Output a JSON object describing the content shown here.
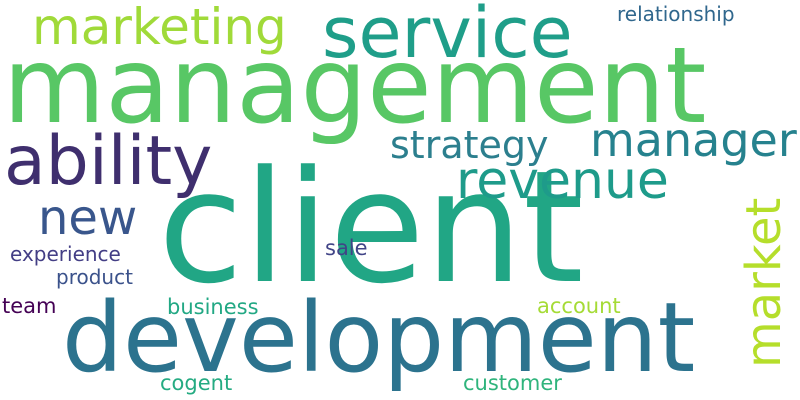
{
  "words": {
    "management": {
      "text": "management",
      "color": "#58c765"
    },
    "client": {
      "text": "client",
      "color": "#21a685"
    },
    "development": {
      "text": "development",
      "color": "#2c738e"
    },
    "service": {
      "text": "service",
      "color": "#1f9e89"
    },
    "ability": {
      "text": "ability",
      "color": "#3f2f6e"
    },
    "marketing": {
      "text": "marketing",
      "color": "#a0da39"
    },
    "revenue": {
      "text": "revenue",
      "color": "#1e9b8a"
    },
    "manager": {
      "text": "manager",
      "color": "#26828e"
    },
    "strategy": {
      "text": "strategy",
      "color": "#2c7f8e"
    },
    "new": {
      "text": "new",
      "color": "#39568c"
    },
    "market": {
      "text": "market",
      "color": "#b5de2b"
    },
    "relationship": {
      "text": "relationship",
      "color": "#30678d"
    },
    "experience": {
      "text": "experience",
      "color": "#433e85"
    },
    "product": {
      "text": "product",
      "color": "#3b528b"
    },
    "sale": {
      "text": "sale",
      "color": "#414487"
    },
    "team": {
      "text": "team",
      "color": "#440154"
    },
    "business": {
      "text": "business",
      "color": "#22a884"
    },
    "account": {
      "text": "account",
      "color": "#a5db36"
    },
    "cogent": {
      "text": "cogent",
      "color": "#25ab82"
    },
    "customer": {
      "text": "customer",
      "color": "#2fb47c"
    }
  }
}
